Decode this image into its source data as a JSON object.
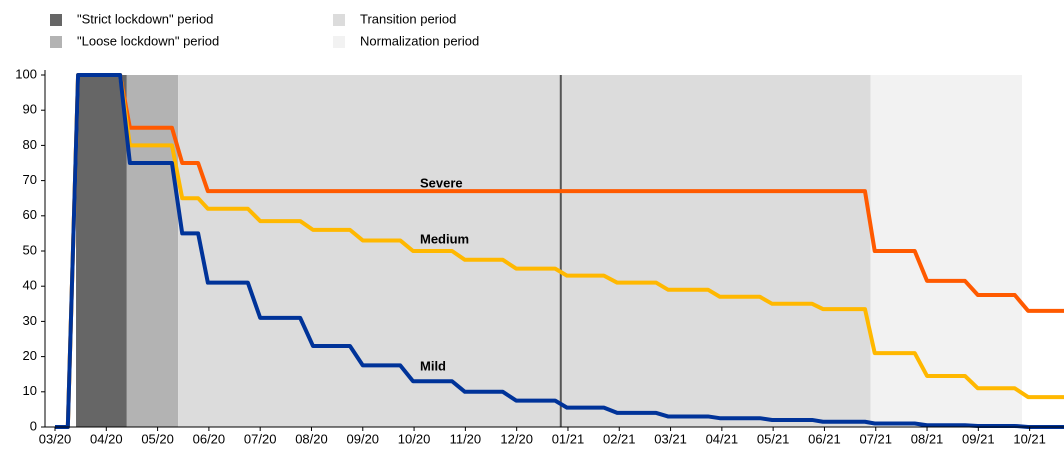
{
  "chart_data": {
    "type": "line",
    "periods": [
      {
        "name": "\"Strict lockdown\" period",
        "start": 0.41,
        "end": 1.4,
        "color": "#666666"
      },
      {
        "name": "\"Loose lockdown\" period",
        "start": 1.4,
        "end": 2.4,
        "color": "#b3b3b3"
      },
      {
        "name": "Transition period",
        "start": 2.4,
        "end": 15.9,
        "color": "#dcdcdc"
      },
      {
        "name": "Normalization period",
        "start": 15.9,
        "end": 18.85,
        "color": "#f2f2f2"
      }
    ],
    "vline": {
      "x": 9.86,
      "color": "#555555"
    },
    "x": [
      0,
      0.25,
      0.45,
      1.27,
      1.46,
      2.28,
      2.48,
      2.79,
      2.98,
      3.76,
      4.0,
      4.78,
      5.03,
      5.75,
      6.0,
      6.73,
      6.98,
      7.74,
      7.99,
      8.73,
      8.99,
      9.75,
      9.98,
      10.7,
      10.96,
      11.72,
      11.95,
      12.73,
      12.96,
      13.74,
      13.98,
      14.76,
      14.97,
      15.79,
      15.98,
      16.76,
      17.0,
      17.74,
      17.99,
      18.71,
      18.97,
      19.67
    ],
    "series": [
      {
        "name": "Severe",
        "color": "#ff5a00",
        "values": [
          0,
          0,
          100,
          100,
          85,
          85,
          75,
          75,
          67,
          67,
          67,
          67,
          67,
          67,
          67,
          67,
          67,
          67,
          67,
          67,
          67,
          67,
          67,
          67,
          67,
          67,
          67,
          67,
          67,
          67,
          67,
          67,
          67,
          67,
          50,
          50,
          41.5,
          41.5,
          37.5,
          37.5,
          33,
          33
        ]
      },
      {
        "name": "Medium",
        "color": "#ffb800",
        "values": [
          0,
          0,
          100,
          100,
          80,
          80,
          65,
          65,
          62,
          62,
          58.5,
          58.5,
          56,
          56,
          53,
          53,
          50,
          50,
          47.5,
          47.5,
          45,
          45,
          43,
          43,
          41,
          41,
          39,
          39,
          37,
          37,
          35,
          35,
          33.5,
          33.5,
          21,
          21,
          14.5,
          14.5,
          11,
          11,
          8.5,
          8.5
        ]
      },
      {
        "name": "Mild",
        "color": "#003399",
        "values": [
          0,
          0,
          100,
          100,
          75,
          75,
          55,
          55,
          41,
          41,
          31,
          31,
          23,
          23,
          17.5,
          17.5,
          13,
          13,
          10,
          10,
          7.5,
          7.5,
          5.5,
          5.5,
          4,
          4,
          3,
          3,
          2.5,
          2.5,
          2,
          2,
          1.5,
          1.5,
          1,
          1,
          0.5,
          0.5,
          0.3,
          0.3,
          0,
          0
        ]
      }
    ],
    "xlim": [
      0,
      19.67
    ],
    "xticks": [
      {
        "value": 0,
        "label": "03/20"
      },
      {
        "value": 1,
        "label": "04/20"
      },
      {
        "value": 2,
        "label": "05/20"
      },
      {
        "value": 3,
        "label": "06/20"
      },
      {
        "value": 4,
        "label": "07/20"
      },
      {
        "value": 5,
        "label": "08/20"
      },
      {
        "value": 6,
        "label": "09/20"
      },
      {
        "value": 7,
        "label": "10/20"
      },
      {
        "value": 8,
        "label": "11/20"
      },
      {
        "value": 9,
        "label": "12/20"
      },
      {
        "value": 10,
        "label": "01/21"
      },
      {
        "value": 11,
        "label": "02/21"
      },
      {
        "value": 12,
        "label": "03/21"
      },
      {
        "value": 13,
        "label": "04/21"
      },
      {
        "value": 14,
        "label": "05/21"
      },
      {
        "value": 15,
        "label": "06/21"
      },
      {
        "value": 16,
        "label": "07/21"
      },
      {
        "value": 17,
        "label": "08/21"
      },
      {
        "value": 18,
        "label": "09/21"
      },
      {
        "value": 19,
        "label": "10/21"
      }
    ],
    "ylim": [
      0,
      100
    ],
    "yticks": [
      0,
      10,
      20,
      30,
      40,
      50,
      60,
      70,
      80,
      90,
      100
    ]
  }
}
